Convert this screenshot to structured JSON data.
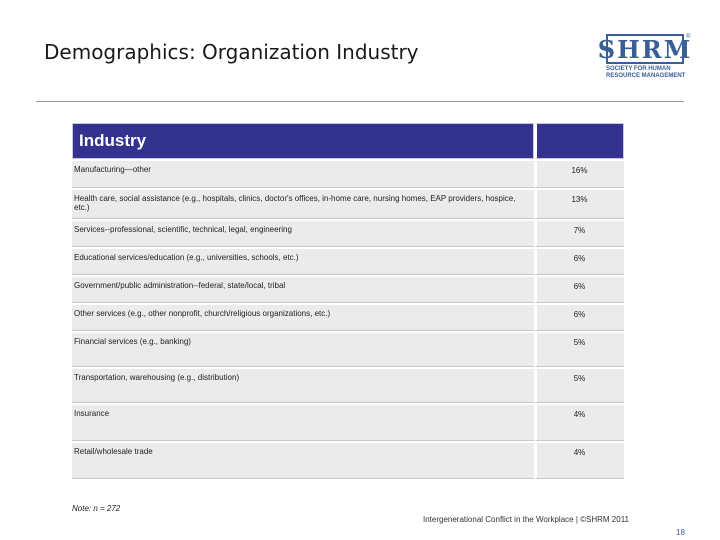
{
  "slide": {
    "title": "Demographics: Organization Industry",
    "note": "Note: n = 272",
    "footer": "Intergenerational Conflict in the Workplace | ©SHRM 2011",
    "page_number": "18"
  },
  "logo": {
    "mark": "SHRM",
    "registered": "®",
    "line1": "SOCIETY FOR HUMAN",
    "line2": "RESOURCE MANAGEMENT"
  },
  "table": {
    "header": "Industry",
    "value_header": "",
    "rows": [
      {
        "label": "Manufacturing—other",
        "value": "16%"
      },
      {
        "label": "Health care, social assistance (e.g., hospitals, clinics, doctor's offices, in-home care, nursing homes, EAP providers, hospice, etc.)",
        "value": "13%"
      },
      {
        "label": "Services--professional, scientific, technical, legal, engineering",
        "value": "7%"
      },
      {
        "label": "Educational services/education (e.g., universities, schools, etc.)",
        "value": "6%"
      },
      {
        "label": "Government/public administration--federal, state/local, tribal",
        "value": "6%"
      },
      {
        "label": "Other services (e.g., other nonprofit, church/religious organizations, etc.)",
        "value": "6%"
      },
      {
        "label": "Financial services (e.g., banking)",
        "value": "5%"
      },
      {
        "label": "Transportation, warehousing (e.g., distribution)",
        "value": "5%"
      },
      {
        "label": "Insurance",
        "value": "4%"
      },
      {
        "label": "Retail/wholesale trade",
        "value": "4%"
      }
    ]
  }
}
